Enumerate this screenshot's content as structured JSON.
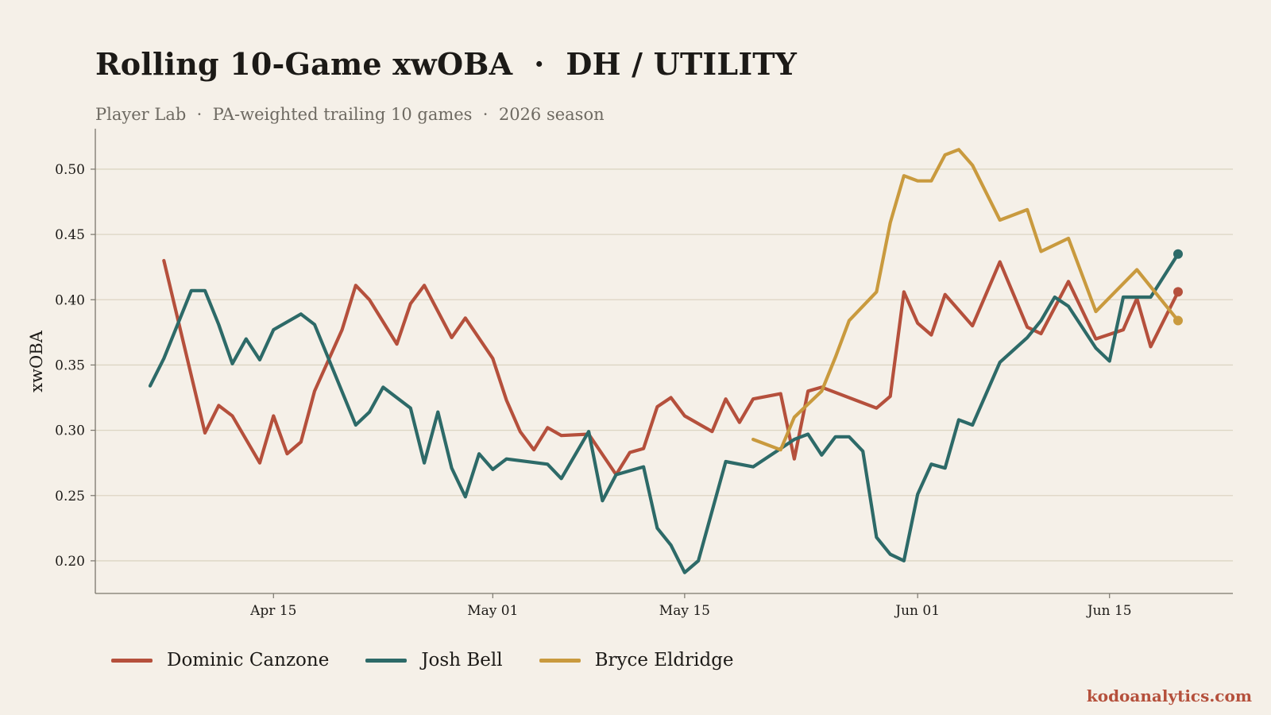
{
  "title": "Rolling 10-Game xwOBA  ·  DH / UTILITY",
  "subtitle": "Player Lab  ·  PA-weighted trailing 10 games  ·  2026 season",
  "credit": "kodoanalytics.com",
  "chart_data": {
    "type": "line",
    "ylabel": "xwOBA",
    "xlabel": "",
    "ylim": [
      0.175,
      0.531
    ],
    "xlim": [
      "2026-04-02",
      "2026-06-24"
    ],
    "yticks": [
      0.2,
      0.25,
      0.3,
      0.35,
      0.4,
      0.45,
      0.5
    ],
    "ytick_labels": [
      "0.20",
      "0.25",
      "0.30",
      "0.35",
      "0.40",
      "0.45",
      "0.50"
    ],
    "xticks": [
      "2026-04-15",
      "2026-05-01",
      "2026-05-15",
      "2026-06-01",
      "2026-06-15"
    ],
    "xtick_labels": [
      "Apr 15",
      "May 01",
      "May 15",
      "Jun 01",
      "Jun 15"
    ],
    "grid": "horizontal",
    "legend_position": "bottom-left",
    "series": [
      {
        "name": "Dominic Canzone",
        "color": "#b5503c",
        "end_marker": true,
        "points": [
          [
            "2026-04-07",
            0.43
          ],
          [
            "2026-04-10",
            0.298
          ],
          [
            "2026-04-11",
            0.319
          ],
          [
            "2026-04-12",
            0.311
          ],
          [
            "2026-04-14",
            0.275
          ],
          [
            "2026-04-15",
            0.311
          ],
          [
            "2026-04-16",
            0.282
          ],
          [
            "2026-04-17",
            0.291
          ],
          [
            "2026-04-18",
            0.33
          ],
          [
            "2026-04-20",
            0.377
          ],
          [
            "2026-04-21",
            0.411
          ],
          [
            "2026-04-22",
            0.4
          ],
          [
            "2026-04-24",
            0.366
          ],
          [
            "2026-04-25",
            0.397
          ],
          [
            "2026-04-26",
            0.411
          ],
          [
            "2026-04-28",
            0.371
          ],
          [
            "2026-04-29",
            0.386
          ],
          [
            "2026-05-01",
            0.355
          ],
          [
            "2026-05-02",
            0.323
          ],
          [
            "2026-05-03",
            0.299
          ],
          [
            "2026-05-04",
            0.285
          ],
          [
            "2026-05-05",
            0.302
          ],
          [
            "2026-05-06",
            0.296
          ],
          [
            "2026-05-08",
            0.297
          ],
          [
            "2026-05-10",
            0.266
          ],
          [
            "2026-05-11",
            0.283
          ],
          [
            "2026-05-12",
            0.286
          ],
          [
            "2026-05-13",
            0.318
          ],
          [
            "2026-05-14",
            0.325
          ],
          [
            "2026-05-15",
            0.311
          ],
          [
            "2026-05-17",
            0.299
          ],
          [
            "2026-05-18",
            0.324
          ],
          [
            "2026-05-19",
            0.306
          ],
          [
            "2026-05-20",
            0.324
          ],
          [
            "2026-05-22",
            0.328
          ],
          [
            "2026-05-23",
            0.278
          ],
          [
            "2026-05-24",
            0.33
          ],
          [
            "2026-05-25",
            0.333
          ],
          [
            "2026-05-29",
            0.317
          ],
          [
            "2026-05-30",
            0.326
          ],
          [
            "2026-05-31",
            0.406
          ],
          [
            "2026-06-01",
            0.382
          ],
          [
            "2026-06-02",
            0.373
          ],
          [
            "2026-06-03",
            0.404
          ],
          [
            "2026-06-05",
            0.38
          ],
          [
            "2026-06-07",
            0.429
          ],
          [
            "2026-06-09",
            0.379
          ],
          [
            "2026-06-10",
            0.374
          ],
          [
            "2026-06-12",
            0.414
          ],
          [
            "2026-06-14",
            0.37
          ],
          [
            "2026-06-16",
            0.377
          ],
          [
            "2026-06-17",
            0.401
          ],
          [
            "2026-06-18",
            0.364
          ],
          [
            "2026-06-20",
            0.406
          ]
        ]
      },
      {
        "name": "Josh Bell",
        "color": "#2d6a68",
        "end_marker": true,
        "points": [
          [
            "2026-04-06",
            0.334
          ],
          [
            "2026-04-07",
            0.355
          ],
          [
            "2026-04-09",
            0.407
          ],
          [
            "2026-04-10",
            0.407
          ],
          [
            "2026-04-11",
            0.381
          ],
          [
            "2026-04-12",
            0.351
          ],
          [
            "2026-04-13",
            0.37
          ],
          [
            "2026-04-14",
            0.354
          ],
          [
            "2026-04-15",
            0.377
          ],
          [
            "2026-04-17",
            0.389
          ],
          [
            "2026-04-18",
            0.381
          ],
          [
            "2026-04-21",
            0.304
          ],
          [
            "2026-04-22",
            0.314
          ],
          [
            "2026-04-23",
            0.333
          ],
          [
            "2026-04-25",
            0.317
          ],
          [
            "2026-04-26",
            0.275
          ],
          [
            "2026-04-27",
            0.314
          ],
          [
            "2026-04-28",
            0.271
          ],
          [
            "2026-04-29",
            0.249
          ],
          [
            "2026-04-30",
            0.282
          ],
          [
            "2026-05-01",
            0.27
          ],
          [
            "2026-05-02",
            0.278
          ],
          [
            "2026-05-05",
            0.274
          ],
          [
            "2026-05-06",
            0.263
          ],
          [
            "2026-05-08",
            0.299
          ],
          [
            "2026-05-09",
            0.246
          ],
          [
            "2026-05-10",
            0.266
          ],
          [
            "2026-05-12",
            0.272
          ],
          [
            "2026-05-13",
            0.225
          ],
          [
            "2026-05-14",
            0.212
          ],
          [
            "2026-05-15",
            0.191
          ],
          [
            "2026-05-16",
            0.2
          ],
          [
            "2026-05-18",
            0.276
          ],
          [
            "2026-05-19",
            0.274
          ],
          [
            "2026-05-20",
            0.272
          ],
          [
            "2026-05-22",
            0.286
          ],
          [
            "2026-05-23",
            0.293
          ],
          [
            "2026-05-24",
            0.297
          ],
          [
            "2026-05-25",
            0.281
          ],
          [
            "2026-05-26",
            0.295
          ],
          [
            "2026-05-27",
            0.295
          ],
          [
            "2026-05-28",
            0.284
          ],
          [
            "2026-05-29",
            0.218
          ],
          [
            "2026-05-30",
            0.205
          ],
          [
            "2026-05-31",
            0.2
          ],
          [
            "2026-06-01",
            0.251
          ],
          [
            "2026-06-02",
            0.274
          ],
          [
            "2026-06-03",
            0.271
          ],
          [
            "2026-06-04",
            0.308
          ],
          [
            "2026-06-05",
            0.304
          ],
          [
            "2026-06-07",
            0.352
          ],
          [
            "2026-06-09",
            0.371
          ],
          [
            "2026-06-10",
            0.384
          ],
          [
            "2026-06-11",
            0.402
          ],
          [
            "2026-06-12",
            0.395
          ],
          [
            "2026-06-14",
            0.363
          ],
          [
            "2026-06-15",
            0.353
          ],
          [
            "2026-06-16",
            0.402
          ],
          [
            "2026-06-18",
            0.402
          ],
          [
            "2026-06-20",
            0.435
          ]
        ]
      },
      {
        "name": "Bryce Eldridge",
        "color": "#c99a3e",
        "end_marker": true,
        "points": [
          [
            "2026-05-20",
            0.293
          ],
          [
            "2026-05-22",
            0.285
          ],
          [
            "2026-05-23",
            0.31
          ],
          [
            "2026-05-25",
            0.33
          ],
          [
            "2026-05-26",
            0.356
          ],
          [
            "2026-05-27",
            0.384
          ],
          [
            "2026-05-29",
            0.406
          ],
          [
            "2026-05-30",
            0.459
          ],
          [
            "2026-05-31",
            0.495
          ],
          [
            "2026-06-01",
            0.491
          ],
          [
            "2026-06-02",
            0.491
          ],
          [
            "2026-06-03",
            0.511
          ],
          [
            "2026-06-04",
            0.515
          ],
          [
            "2026-06-05",
            0.503
          ],
          [
            "2026-06-07",
            0.461
          ],
          [
            "2026-06-09",
            0.469
          ],
          [
            "2026-06-10",
            0.437
          ],
          [
            "2026-06-12",
            0.447
          ],
          [
            "2026-06-14",
            0.391
          ],
          [
            "2026-06-17",
            0.423
          ],
          [
            "2026-06-20",
            0.384
          ]
        ]
      }
    ]
  }
}
